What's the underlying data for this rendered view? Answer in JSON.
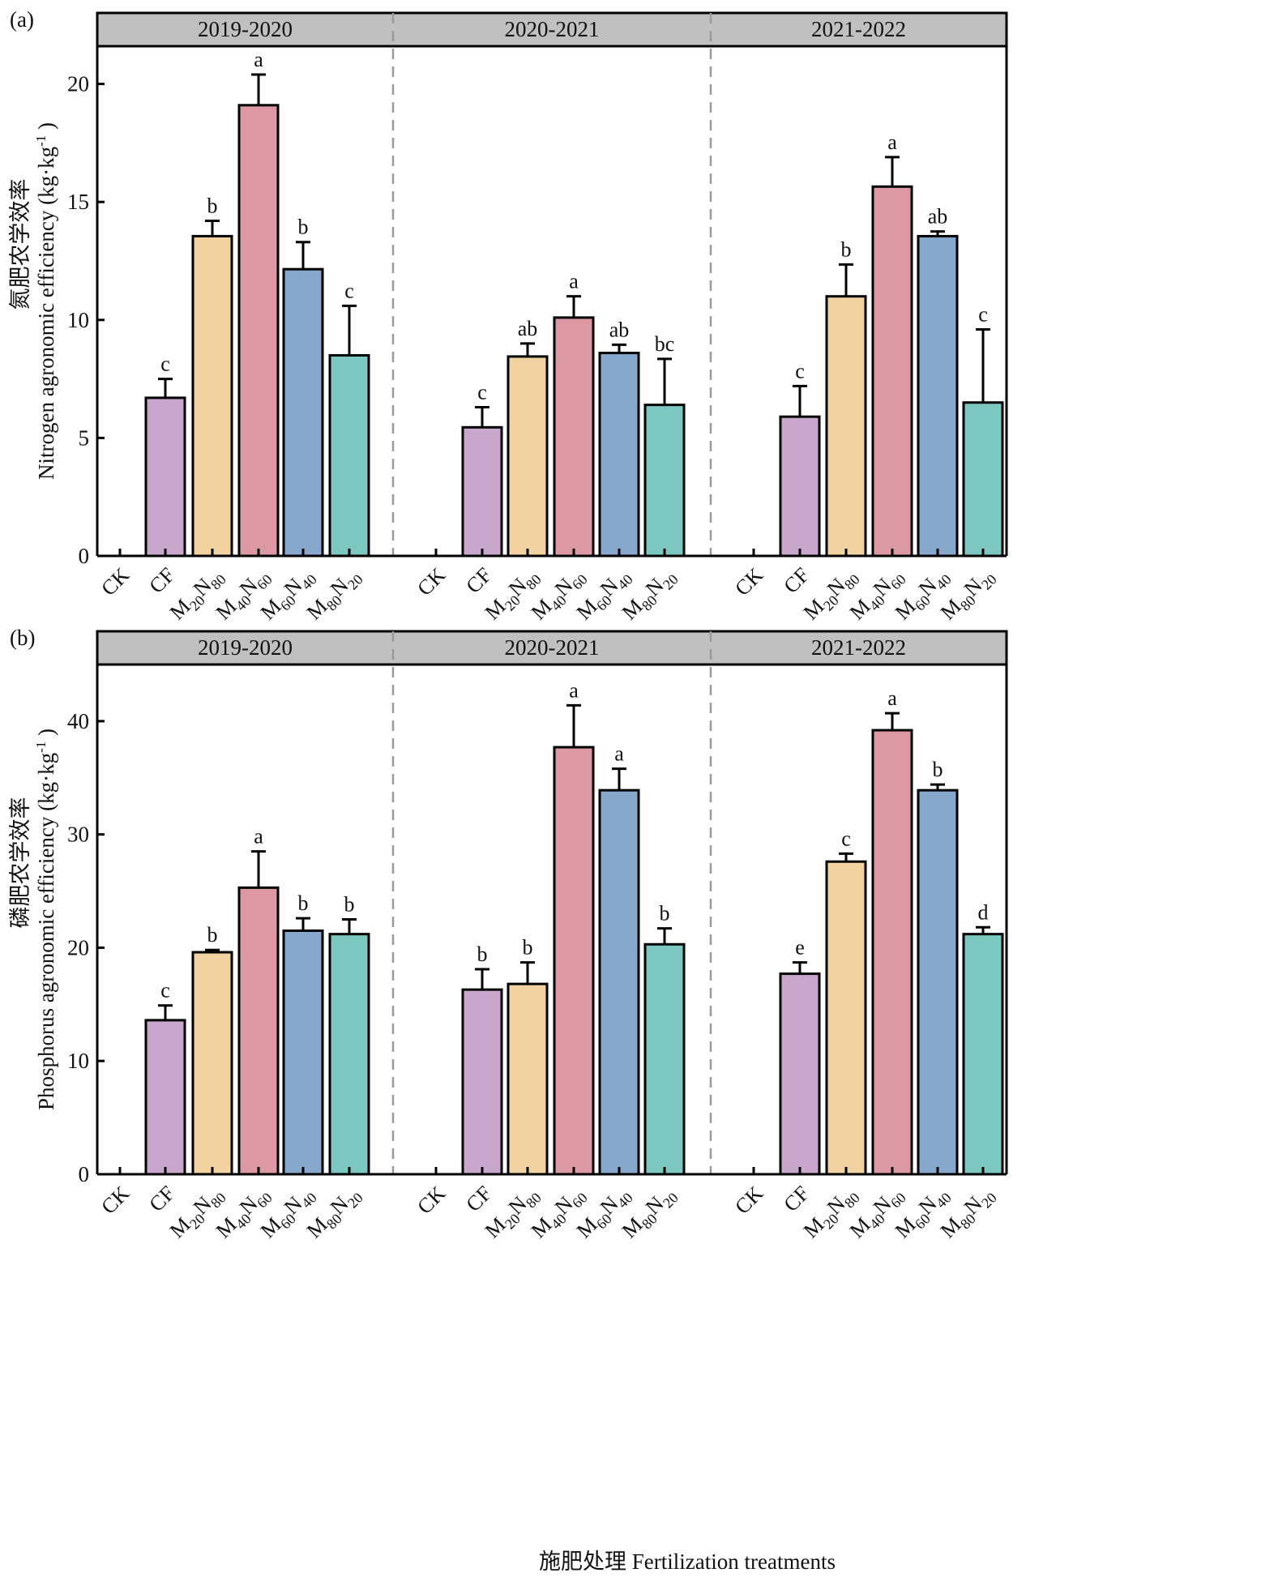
{
  "figure": {
    "x_axis_title": "施肥处理 Fertilization treatments"
  },
  "chart_data": [
    {
      "type": "bar",
      "panel_label": "(a)",
      "ylabel_cn": "氮肥农学效率",
      "ylabel_en": "Nitrogen agronomic efficiency (kg·kg",
      "ylabel_unit_sup": "-1",
      "ylabel_close": ")",
      "ylim": [
        0,
        21.6
      ],
      "yticks": [
        0,
        5,
        10,
        15,
        20
      ],
      "categories": [
        "CK",
        "CF",
        "M20N80",
        "M40N60",
        "M60N40",
        "M80N20"
      ],
      "category_labels": [
        {
          "main": "CK",
          "parts": []
        },
        {
          "main": "CF",
          "parts": []
        },
        {
          "main": "",
          "parts": [
            [
              "M",
              "20"
            ],
            [
              "N",
              "80"
            ]
          ]
        },
        {
          "main": "",
          "parts": [
            [
              "M",
              "40"
            ],
            [
              "N",
              "60"
            ]
          ]
        },
        {
          "main": "",
          "parts": [
            [
              "M",
              "60"
            ],
            [
              "N",
              "40"
            ]
          ]
        },
        {
          "main": "",
          "parts": [
            [
              "M",
              "80"
            ],
            [
              "N",
              "20"
            ]
          ]
        }
      ],
      "colors": [
        "#c9a7cd",
        "#c9a7cd",
        "#f2d2a1",
        "#dc99a3",
        "#86a8cd",
        "#7cc8c1"
      ],
      "facets": [
        {
          "title": "2019-2020",
          "values": [
            0,
            6.7,
            13.55,
            19.1,
            12.15,
            8.5
          ],
          "errors": [
            0,
            0.8,
            0.65,
            1.3,
            1.15,
            2.1
          ],
          "letters": [
            "",
            "c",
            "b",
            "a",
            "b",
            "c"
          ]
        },
        {
          "title": "2020-2021",
          "values": [
            0,
            5.45,
            8.45,
            10.1,
            8.6,
            6.4
          ],
          "errors": [
            0,
            0.85,
            0.55,
            0.9,
            0.35,
            1.95
          ],
          "letters": [
            "",
            "c",
            "ab",
            "a",
            "ab",
            "bc"
          ]
        },
        {
          "title": "2021-2022",
          "values": [
            0,
            5.9,
            11.0,
            15.65,
            13.55,
            6.5
          ],
          "errors": [
            0,
            1.3,
            1.35,
            1.25,
            0.2,
            3.1
          ],
          "letters": [
            "",
            "c",
            "b",
            "a",
            "ab",
            "c"
          ]
        }
      ],
      "xlabel": "",
      "grid": false,
      "legend": "none"
    },
    {
      "type": "bar",
      "panel_label": "(b)",
      "ylabel_cn": "磷肥农学效率",
      "ylabel_en": "Phosphorus agronomic efficiency (kg·kg",
      "ylabel_unit_sup": "-1",
      "ylabel_close": ")",
      "ylim": [
        0,
        45
      ],
      "yticks": [
        0,
        10,
        20,
        30,
        40
      ],
      "categories": [
        "CK",
        "CF",
        "M20N80",
        "M40N60",
        "M60N40",
        "M80N20"
      ],
      "category_labels": [
        {
          "main": "CK",
          "parts": []
        },
        {
          "main": "CF",
          "parts": []
        },
        {
          "main": "",
          "parts": [
            [
              "M",
              "20"
            ],
            [
              "N",
              "80"
            ]
          ]
        },
        {
          "main": "",
          "parts": [
            [
              "M",
              "40"
            ],
            [
              "N",
              "60"
            ]
          ]
        },
        {
          "main": "",
          "parts": [
            [
              "M",
              "60"
            ],
            [
              "N",
              "40"
            ]
          ]
        },
        {
          "main": "",
          "parts": [
            [
              "M",
              "80"
            ],
            [
              "N",
              "20"
            ]
          ]
        }
      ],
      "colors": [
        "#c9a7cd",
        "#c9a7cd",
        "#f2d2a1",
        "#dc99a3",
        "#86a8cd",
        "#7cc8c1"
      ],
      "facets": [
        {
          "title": "2019-2020",
          "values": [
            0,
            13.6,
            19.6,
            25.3,
            21.5,
            21.2
          ],
          "errors": [
            0,
            1.3,
            0.2,
            3.2,
            1.1,
            1.3
          ],
          "letters": [
            "",
            "c",
            "b",
            "a",
            "b",
            "b"
          ]
        },
        {
          "title": "2020-2021",
          "values": [
            0,
            16.3,
            16.8,
            37.7,
            33.9,
            20.3
          ],
          "errors": [
            0,
            1.8,
            1.9,
            3.7,
            1.9,
            1.4
          ],
          "letters": [
            "",
            "b",
            "b",
            "a",
            "a",
            "b"
          ]
        },
        {
          "title": "2021-2022",
          "values": [
            0,
            17.7,
            27.6,
            39.2,
            33.9,
            21.2
          ],
          "errors": [
            0,
            1.0,
            0.7,
            1.5,
            0.5,
            0.6
          ],
          "letters": [
            "",
            "e",
            "c",
            "a",
            "b",
            "d"
          ]
        }
      ],
      "xlabel": "施肥处理 Fertilization treatments",
      "grid": false,
      "legend": "none"
    }
  ]
}
